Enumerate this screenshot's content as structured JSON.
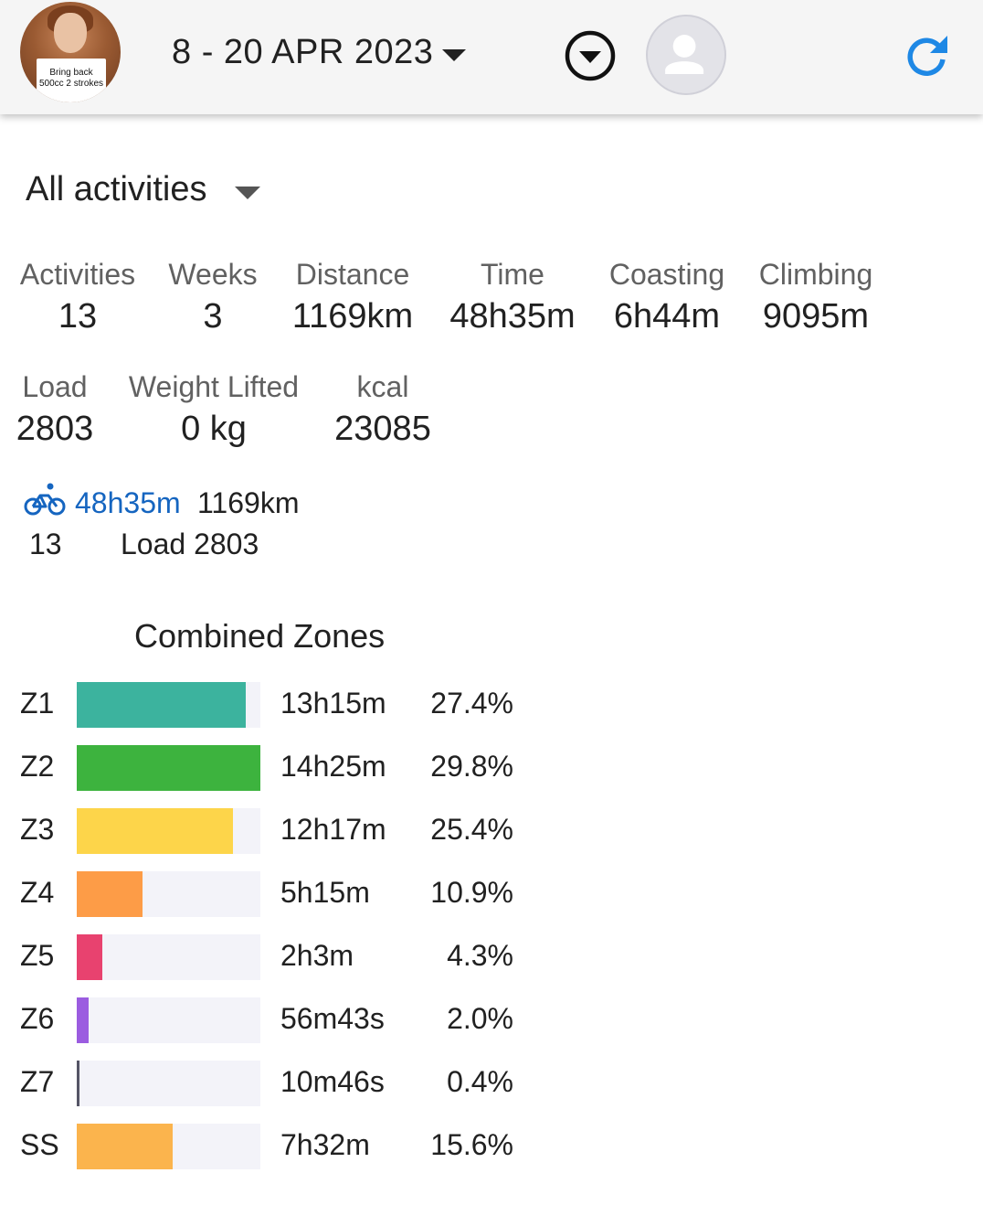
{
  "header": {
    "avatar_sign_text": "Bring back 500cc 2 strokes",
    "date_range": "8 - 20 APR 2023",
    "icons": {
      "date_dropdown": "caret-down-icon",
      "menu": "circle-chevron-down-icon",
      "profile": "user-icon",
      "refresh": "refresh-icon"
    },
    "refresh_color": "#1e88e5"
  },
  "filter": {
    "label": "All activities"
  },
  "stats": {
    "activities": {
      "label": "Activities",
      "value": "13"
    },
    "weeks": {
      "label": "Weeks",
      "value": "3"
    },
    "distance": {
      "label": "Distance",
      "value": "1169km"
    },
    "time": {
      "label": "Time",
      "value": "48h35m"
    },
    "coasting": {
      "label": "Coasting",
      "value": "6h44m"
    },
    "climbing": {
      "label": "Climbing",
      "value": "9095m"
    },
    "load": {
      "label": "Load",
      "value": "2803"
    },
    "weight_lifted": {
      "label": "Weight Lifted",
      "value": "0 kg"
    },
    "kcal": {
      "label": "kcal",
      "value": "23085"
    }
  },
  "sport": {
    "icon": "bicycle-icon",
    "time": "48h35m",
    "distance": "1169km",
    "count": "13",
    "load": "Load 2803",
    "accent": "#1565c0"
  },
  "zones": {
    "title": "Combined Zones",
    "rows": [
      {
        "zone": "Z1",
        "time": "13h15m",
        "percent": "27.4%",
        "fill_fraction": 0.92,
        "color": "#3cb39e"
      },
      {
        "zone": "Z2",
        "time": "14h25m",
        "percent": "29.8%",
        "fill_fraction": 1.0,
        "color": "#3db33e"
      },
      {
        "zone": "Z3",
        "time": "12h17m",
        "percent": "25.4%",
        "fill_fraction": 0.85,
        "color": "#fdd54a"
      },
      {
        "zone": "Z4",
        "time": "5h15m",
        "percent": "10.9%",
        "fill_fraction": 0.36,
        "color": "#fd9c47"
      },
      {
        "zone": "Z5",
        "time": "2h3m",
        "percent": "4.3%",
        "fill_fraction": 0.14,
        "color": "#e8426f"
      },
      {
        "zone": "Z6",
        "time": "56m43s",
        "percent": "2.0%",
        "fill_fraction": 0.065,
        "color": "#9b5ce0"
      },
      {
        "zone": "Z7",
        "time": "10m46s",
        "percent": "0.4%",
        "fill_fraction": 0.013,
        "color": "#555566"
      },
      {
        "zone": "SS",
        "time": "7h32m",
        "percent": "15.6%",
        "fill_fraction": 0.52,
        "color": "#fbb44d"
      }
    ]
  }
}
